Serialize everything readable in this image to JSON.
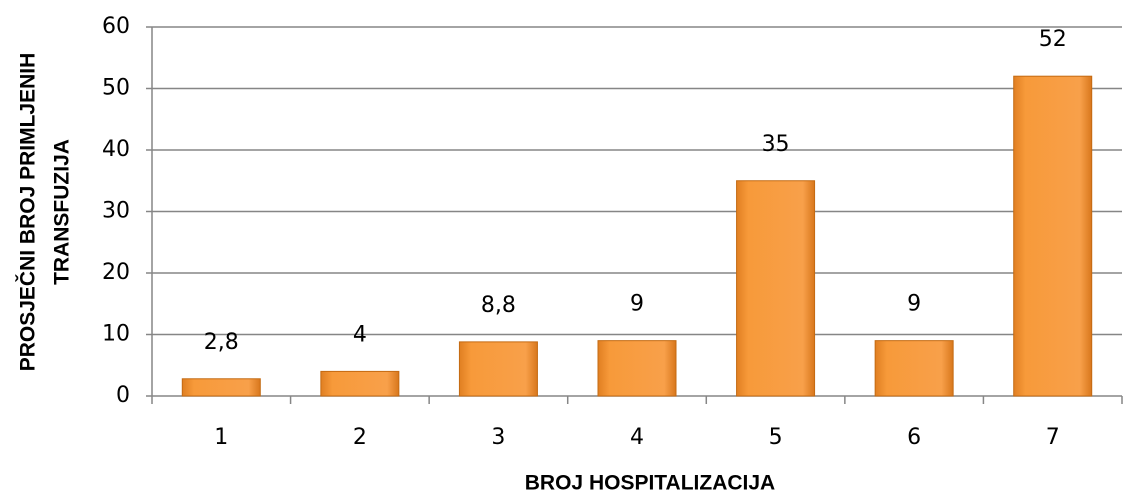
{
  "chart_data": {
    "type": "bar",
    "categories": [
      "1",
      "2",
      "3",
      "4",
      "5",
      "6",
      "7"
    ],
    "values": [
      2.8,
      4,
      8.8,
      9,
      35,
      9,
      52
    ],
    "value_labels": [
      "2,8",
      "4",
      "8,8",
      "9",
      "35",
      "9",
      "52"
    ],
    "color": "#f79a3a",
    "xlabel": "BROJ HOSPITALIZACIJA",
    "ylabel": [
      "PROSJEČNI BROJ PRIMLJENIH",
      "TRANSFUZIJA"
    ],
    "ylim": [
      0,
      60
    ],
    "yticks": [
      0,
      10,
      20,
      30,
      40,
      50,
      60
    ],
    "grid": true
  }
}
